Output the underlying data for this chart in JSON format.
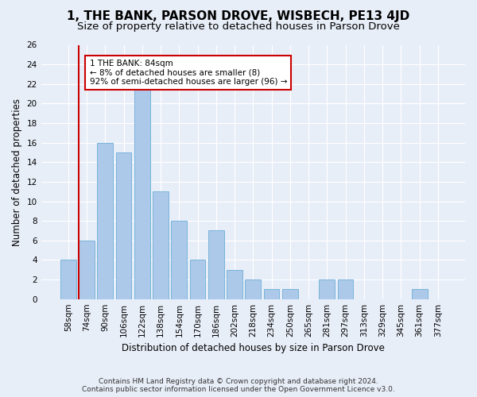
{
  "title": "1, THE BANK, PARSON DROVE, WISBECH, PE13 4JD",
  "subtitle": "Size of property relative to detached houses in Parson Drove",
  "xlabel": "Distribution of detached houses by size in Parson Drove",
  "ylabel": "Number of detached properties",
  "footer_line1": "Contains HM Land Registry data © Crown copyright and database right 2024.",
  "footer_line2": "Contains public sector information licensed under the Open Government Licence v3.0.",
  "bar_labels": [
    "58sqm",
    "74sqm",
    "90sqm",
    "106sqm",
    "122sqm",
    "138sqm",
    "154sqm",
    "170sqm",
    "186sqm",
    "202sqm",
    "218sqm",
    "234sqm",
    "250sqm",
    "265sqm",
    "281sqm",
    "297sqm",
    "313sqm",
    "329sqm",
    "345sqm",
    "361sqm",
    "377sqm"
  ],
  "bar_values": [
    4,
    6,
    16,
    15,
    22,
    11,
    8,
    4,
    7,
    3,
    2,
    1,
    1,
    0,
    2,
    2,
    0,
    0,
    0,
    1,
    0
  ],
  "bar_color": "#adc9ea",
  "bar_edge_color": "#6aaed6",
  "vline_x_index": 1,
  "vline_color": "#cc0000",
  "annotation_text": "1 THE BANK: 84sqm\n← 8% of detached houses are smaller (8)\n92% of semi-detached houses are larger (96) →",
  "annotation_box_color": "#ffffff",
  "annotation_box_edge": "#cc0000",
  "ylim": [
    0,
    26
  ],
  "yticks": [
    0,
    2,
    4,
    6,
    8,
    10,
    12,
    14,
    16,
    18,
    20,
    22,
    24,
    26
  ],
  "bg_color": "#e8eef8",
  "plot_bg_color": "#e8eef8",
  "title_fontsize": 11,
  "subtitle_fontsize": 9.5,
  "axis_label_fontsize": 8.5,
  "tick_fontsize": 7.5,
  "footer_fontsize": 6.5
}
